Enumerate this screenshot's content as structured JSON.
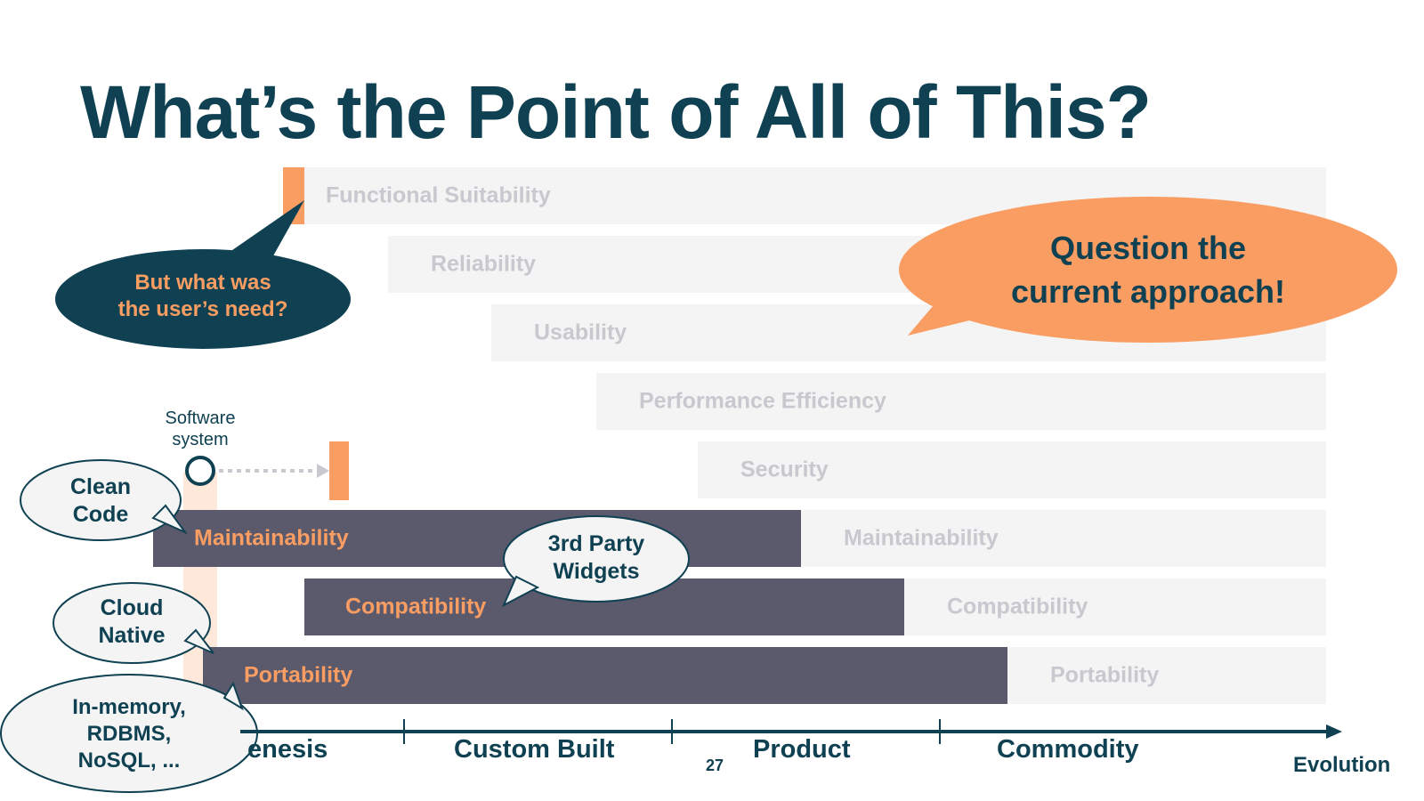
{
  "slide": {
    "title": "What’s the Point of All of This?",
    "page_number": "27"
  },
  "bands": [
    {
      "label": "Functional Suitability"
    },
    {
      "label": "Reliability"
    },
    {
      "label": "Usability"
    },
    {
      "label": "Performance Efficiency"
    },
    {
      "label": "Security"
    },
    {
      "label": "Maintainability"
    },
    {
      "label": "Compatibility"
    },
    {
      "label": "Portability"
    }
  ],
  "dark_bars": [
    {
      "label": "Maintainability"
    },
    {
      "label": "Compatibility"
    },
    {
      "label": "Portability"
    }
  ],
  "callouts": {
    "user_need": {
      "line1": "But what was",
      "line2": "the user’s need?"
    },
    "question": {
      "line1": "Question the",
      "line2": "current approach!"
    },
    "clean_code": {
      "line1": "Clean",
      "line2": "Code"
    },
    "third_party": {
      "line1": "3rd Party",
      "line2": "Widgets"
    },
    "cloud_native": {
      "line1": "Cloud",
      "line2": "Native"
    },
    "storage": {
      "line1": "In-memory,",
      "line2": "RDBMS,",
      "line3": "NoSQL, ..."
    }
  },
  "software_system": {
    "line1": "Software",
    "line2": "system"
  },
  "axis": {
    "stages": [
      "enesis",
      "Custom Built",
      "Product",
      "Commodity"
    ],
    "label": "Evolution"
  },
  "colors": {
    "navy": "#0f4152",
    "orange": "#f99d62",
    "band_bg": "#f4f4f4",
    "band_text": "#c8c8cf",
    "dark_bar": "#5b5a6d",
    "bubble_light": "#f4f4f4"
  }
}
